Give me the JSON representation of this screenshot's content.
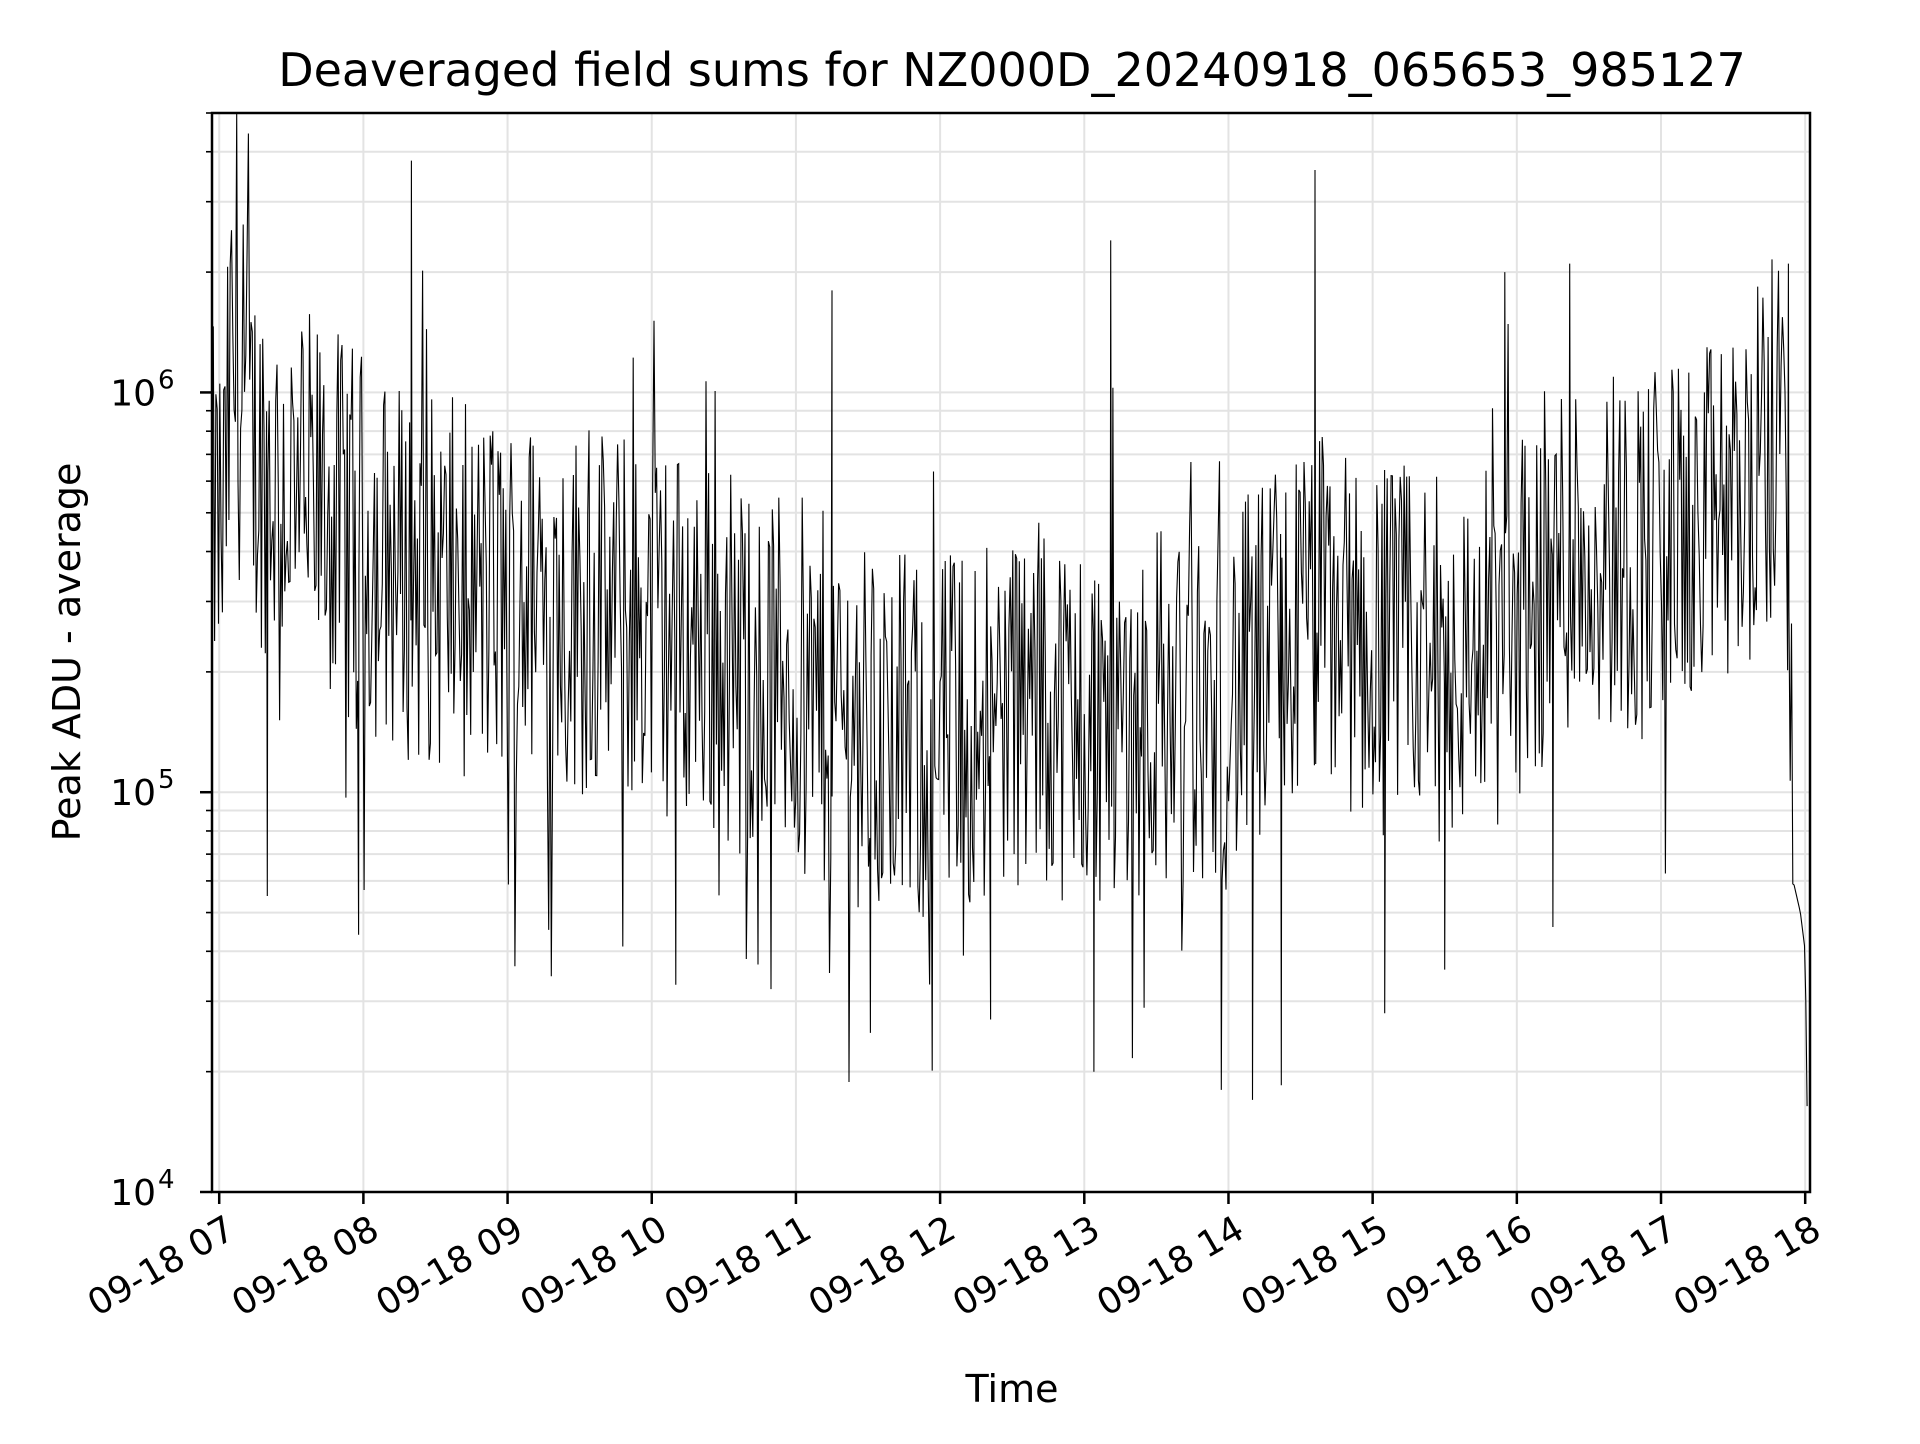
{
  "chart_data": {
    "type": "line",
    "title": "Deaveraged field sums for NZ000D_20240918_065653_985127",
    "xlabel": "Time",
    "ylabel": "Peak ADU - average",
    "yscale": "log",
    "ylim": [
      10000,
      5000000
    ],
    "xlim": [
      "2024-09-18T06:57",
      "2024-09-18T18:02"
    ],
    "grid": true,
    "legend": "none",
    "x_ticks": [
      "09-18 07",
      "09-18 08",
      "09-18 09",
      "09-18 10",
      "09-18 11",
      "09-18 12",
      "09-18 13",
      "09-18 14",
      "09-18 15",
      "09-18 16",
      "09-18 17",
      "09-18 18"
    ],
    "y_ticks": [
      {
        "value": 10000,
        "base": "10",
        "exp": "4"
      },
      {
        "value": 100000,
        "base": "10",
        "exp": "5"
      },
      {
        "value": 1000000,
        "base": "10",
        "exp": "6"
      }
    ],
    "series": [
      {
        "color": "#000000",
        "x": [
          "2024-09-18T06:57",
          "2024-09-18T07:02",
          "2024-09-18T07:05",
          "2024-09-18T07:15",
          "2024-09-18T07:25",
          "2024-09-18T07:35",
          "2024-09-18T07:45",
          "2024-09-18T07:55",
          "2024-09-18T08:05",
          "2024-09-18T08:20",
          "2024-09-18T08:35",
          "2024-09-18T08:50",
          "2024-09-18T09:05",
          "2024-09-18T09:20",
          "2024-09-18T09:35",
          "2024-09-18T09:50",
          "2024-09-18T10:05",
          "2024-09-18T10:20",
          "2024-09-18T10:35",
          "2024-09-18T10:50",
          "2024-09-18T11:05",
          "2024-09-18T11:20",
          "2024-09-18T11:35",
          "2024-09-18T11:50",
          "2024-09-18T12:05",
          "2024-09-18T12:20",
          "2024-09-18T12:35",
          "2024-09-18T12:50",
          "2024-09-18T13:05",
          "2024-09-18T13:20",
          "2024-09-18T13:35",
          "2024-09-18T13:50",
          "2024-09-18T14:05",
          "2024-09-18T14:20",
          "2024-09-18T14:35",
          "2024-09-18T14:50",
          "2024-09-18T15:05",
          "2024-09-18T15:20",
          "2024-09-18T15:35",
          "2024-09-18T15:50",
          "2024-09-18T16:05",
          "2024-09-18T16:20",
          "2024-09-18T16:35",
          "2024-09-18T16:50",
          "2024-09-18T17:05",
          "2024-09-18T17:20",
          "2024-09-18T17:35",
          "2024-09-18T17:45",
          "2024-09-18T17:52",
          "2024-09-18T17:55",
          "2024-09-18T17:58",
          "2024-09-18T18:00",
          "2024-09-18T18:01"
        ],
        "y": [
          500000,
          450000,
          1200000,
          700000,
          600000,
          550000,
          500000,
          450000,
          400000,
          350000,
          330000,
          310000,
          300000,
          290000,
          280000,
          270000,
          260000,
          240000,
          220000,
          200000,
          180000,
          160000,
          140000,
          130000,
          140000,
          160000,
          170000,
          160000,
          150000,
          160000,
          170000,
          150000,
          180000,
          220000,
          280000,
          250000,
          230000,
          220000,
          210000,
          230000,
          300000,
          400000,
          420000,
          400000,
          420000,
          450000,
          550000,
          700000,
          1100000,
          60000,
          50000,
          40000,
          13000
        ]
      }
    ],
    "spikes": [
      {
        "x": "2024-09-18T07:07",
        "y": 2200000
      },
      {
        "x": "2024-09-18T08:20",
        "y": 3800000
      },
      {
        "x": "2024-09-18T11:15",
        "y": 1800000
      },
      {
        "x": "2024-09-18T13:11",
        "y": 2400000
      },
      {
        "x": "2024-09-18T14:36",
        "y": 3600000
      },
      {
        "x": "2024-09-18T15:55",
        "y": 2000000
      },
      {
        "x": "2024-09-18T16:22",
        "y": 2100000
      },
      {
        "x": "2024-09-18T17:53",
        "y": 2100000
      }
    ],
    "dips": [
      {
        "x": "2024-09-18T07:20",
        "y": 55000
      },
      {
        "x": "2024-09-18T07:58",
        "y": 44000
      },
      {
        "x": "2024-09-18T10:10",
        "y": 33000
      },
      {
        "x": "2024-09-18T11:31",
        "y": 25000
      },
      {
        "x": "2024-09-18T12:21",
        "y": 27000
      },
      {
        "x": "2024-09-18T13:04",
        "y": 20000
      },
      {
        "x": "2024-09-18T13:57",
        "y": 18000
      },
      {
        "x": "2024-09-18T14:10",
        "y": 17000
      },
      {
        "x": "2024-09-18T14:22",
        "y": 18500
      },
      {
        "x": "2024-09-18T15:05",
        "y": 28000
      },
      {
        "x": "2024-09-18T15:30",
        "y": 36000
      },
      {
        "x": "2024-09-18T16:15",
        "y": 46000
      }
    ]
  }
}
